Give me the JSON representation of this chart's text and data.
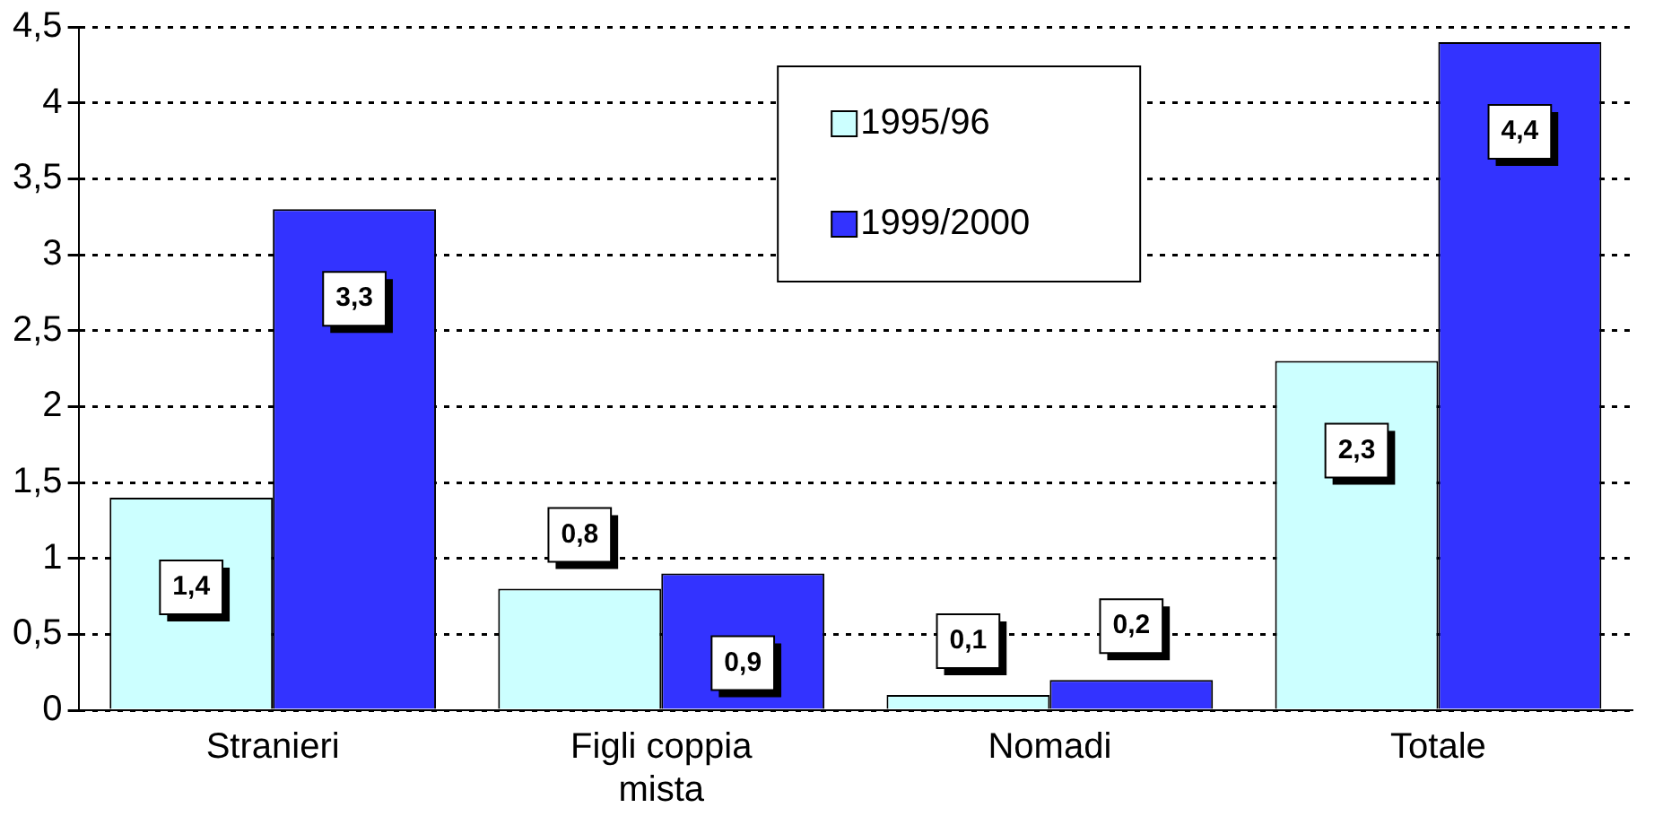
{
  "chart_data": {
    "type": "bar",
    "categories": [
      "Stranieri",
      "Figli coppia mista",
      "Nomadi",
      "Totale"
    ],
    "series": [
      {
        "name": "1995/96",
        "color": "#ccffff",
        "values": [
          1.4,
          0.8,
          0.1,
          2.3
        ],
        "value_labels": [
          "1,4",
          "0,8",
          "0,1",
          "2,3"
        ]
      },
      {
        "name": "1999/2000",
        "color": "#3333ff",
        "values": [
          3.3,
          0.9,
          0.2,
          4.4
        ],
        "value_labels": [
          "3,3",
          "0,9",
          "0,2",
          "4,4"
        ]
      }
    ],
    "ylim": [
      0,
      4.5
    ],
    "yticks": [
      0,
      {
        "value": 0.5,
        "label": "0,5"
      },
      1,
      {
        "value": 1.5,
        "label": "1,5"
      },
      2,
      {
        "value": 2.5,
        "label": "2,5"
      },
      3,
      {
        "value": 3.5,
        "label": "3,5"
      },
      4,
      {
        "value": 4.5,
        "label": "4,5"
      }
    ],
    "grid": "y",
    "legend": "top"
  }
}
